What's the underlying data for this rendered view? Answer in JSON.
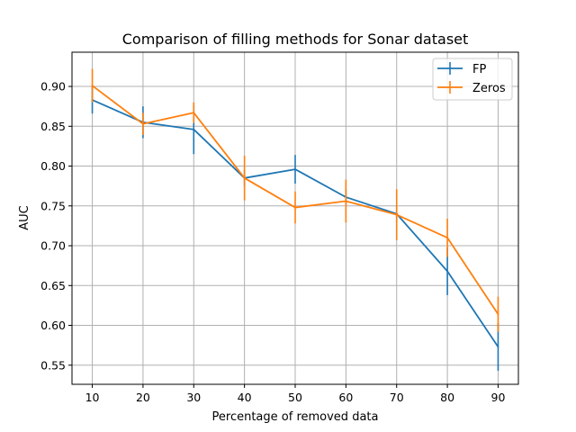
{
  "chart_data": {
    "type": "line",
    "title": "Comparison of filling methods for Sonar dataset",
    "xlabel": "Percentage of removed data",
    "ylabel": "AUC",
    "x": [
      10,
      20,
      30,
      40,
      50,
      60,
      70,
      80,
      90
    ],
    "x_ticks": [
      "10",
      "20",
      "30",
      "40",
      "50",
      "60",
      "70",
      "80",
      "90"
    ],
    "y_ticks": [
      "0.55",
      "0.60",
      "0.65",
      "0.70",
      "0.75",
      "0.80",
      "0.85",
      "0.90"
    ],
    "xlim": [
      6,
      94
    ],
    "ylim": [
      0.526,
      0.943
    ],
    "grid": true,
    "legend_position": "top-right",
    "series": [
      {
        "name": "FP",
        "color": "#1f77b4",
        "values": [
          0.883,
          0.855,
          0.846,
          0.785,
          0.796,
          0.761,
          0.74,
          0.668,
          0.573
        ],
        "errors": [
          0.017,
          0.02,
          0.031,
          0.01,
          0.018,
          0.01,
          0.01,
          0.03,
          0.03
        ]
      },
      {
        "name": "Zeros",
        "color": "#ff7f0e",
        "values": [
          0.901,
          0.853,
          0.867,
          0.785,
          0.748,
          0.756,
          0.739,
          0.71,
          0.614
        ],
        "errors": [
          0.021,
          0.014,
          0.013,
          0.028,
          0.02,
          0.027,
          0.032,
          0.024,
          0.022
        ]
      }
    ]
  }
}
